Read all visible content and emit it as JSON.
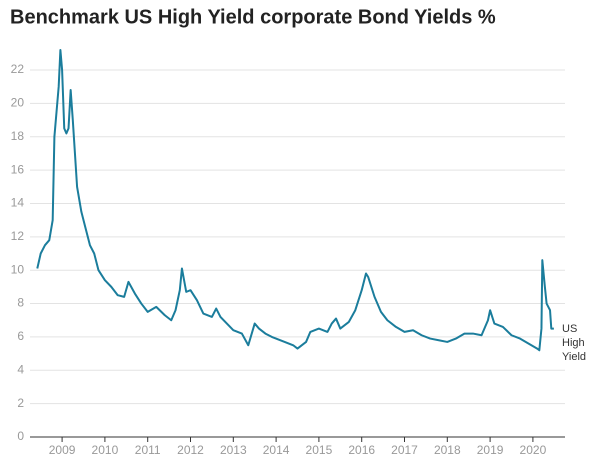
{
  "chart_data": {
    "type": "line",
    "title": "Benchmark US High Yield corporate Bond Yields %",
    "x": [
      2008.42,
      2008.5,
      2008.6,
      2008.7,
      2008.78,
      2008.82,
      2008.87,
      2008.92,
      2008.96,
      2009.0,
      2009.05,
      2009.1,
      2009.15,
      2009.2,
      2009.25,
      2009.3,
      2009.35,
      2009.45,
      2009.55,
      2009.65,
      2009.75,
      2009.85,
      2010.0,
      2010.15,
      2010.3,
      2010.45,
      2010.55,
      2010.7,
      2010.85,
      2011.0,
      2011.2,
      2011.4,
      2011.55,
      2011.65,
      2011.75,
      2011.8,
      2011.9,
      2012.0,
      2012.15,
      2012.3,
      2012.5,
      2012.6,
      2012.7,
      2012.85,
      2013.0,
      2013.2,
      2013.35,
      2013.5,
      2013.6,
      2013.75,
      2013.9,
      2014.2,
      2014.4,
      2014.5,
      2014.7,
      2014.8,
      2015.0,
      2015.2,
      2015.3,
      2015.4,
      2015.5,
      2015.7,
      2015.85,
      2016.0,
      2016.1,
      2016.15,
      2016.3,
      2016.45,
      2016.6,
      2016.8,
      2017.0,
      2017.2,
      2017.4,
      2017.6,
      2017.8,
      2018.0,
      2018.2,
      2018.4,
      2018.6,
      2018.8,
      2018.95,
      2019.0,
      2019.1,
      2019.3,
      2019.5,
      2019.7,
      2019.9,
      2020.1,
      2020.15,
      2020.2,
      2020.22,
      2020.28,
      2020.32,
      2020.4,
      2020.43,
      2020.49
    ],
    "series": [
      {
        "name": "US High Yield",
        "color": "#1b7d9c",
        "values": [
          10.1,
          11.0,
          11.5,
          11.8,
          13,
          18,
          19.5,
          21,
          23.2,
          22,
          18.5,
          18.2,
          18.5,
          20.8,
          19,
          17,
          15,
          13.5,
          12.5,
          11.5,
          11,
          10,
          9.4,
          9.0,
          8.5,
          8.4,
          9.3,
          8.6,
          8.0,
          7.5,
          7.8,
          7.3,
          7.0,
          7.6,
          8.8,
          10.1,
          8.7,
          8.8,
          8.2,
          7.4,
          7.2,
          7.7,
          7.2,
          6.8,
          6.4,
          6.2,
          5.5,
          6.8,
          6.5,
          6.2,
          6.0,
          5.7,
          5.5,
          5.3,
          5.7,
          6.3,
          6.5,
          6.3,
          6.8,
          7.1,
          6.5,
          6.9,
          7.6,
          8.8,
          9.8,
          9.6,
          8.4,
          7.5,
          7.0,
          6.6,
          6.3,
          6.4,
          6.1,
          5.9,
          5.8,
          5.7,
          5.9,
          6.2,
          6.2,
          6.1,
          7.0,
          7.6,
          6.8,
          6.6,
          6.1,
          5.9,
          5.6,
          5.3,
          5.2,
          6.5,
          10.6,
          9.0,
          8.0,
          7.6,
          6.5,
          6.5
        ]
      }
    ],
    "xlim": [
      2008.25,
      2020.75
    ],
    "xticks": [
      2009,
      2010,
      2011,
      2012,
      2013,
      2014,
      2015,
      2016,
      2017,
      2018,
      2019,
      2020
    ],
    "ylim": [
      0,
      23.5
    ],
    "yticks": [
      0,
      2,
      4,
      6,
      8,
      10,
      12,
      14,
      16,
      18,
      20,
      22
    ],
    "grid": true
  }
}
